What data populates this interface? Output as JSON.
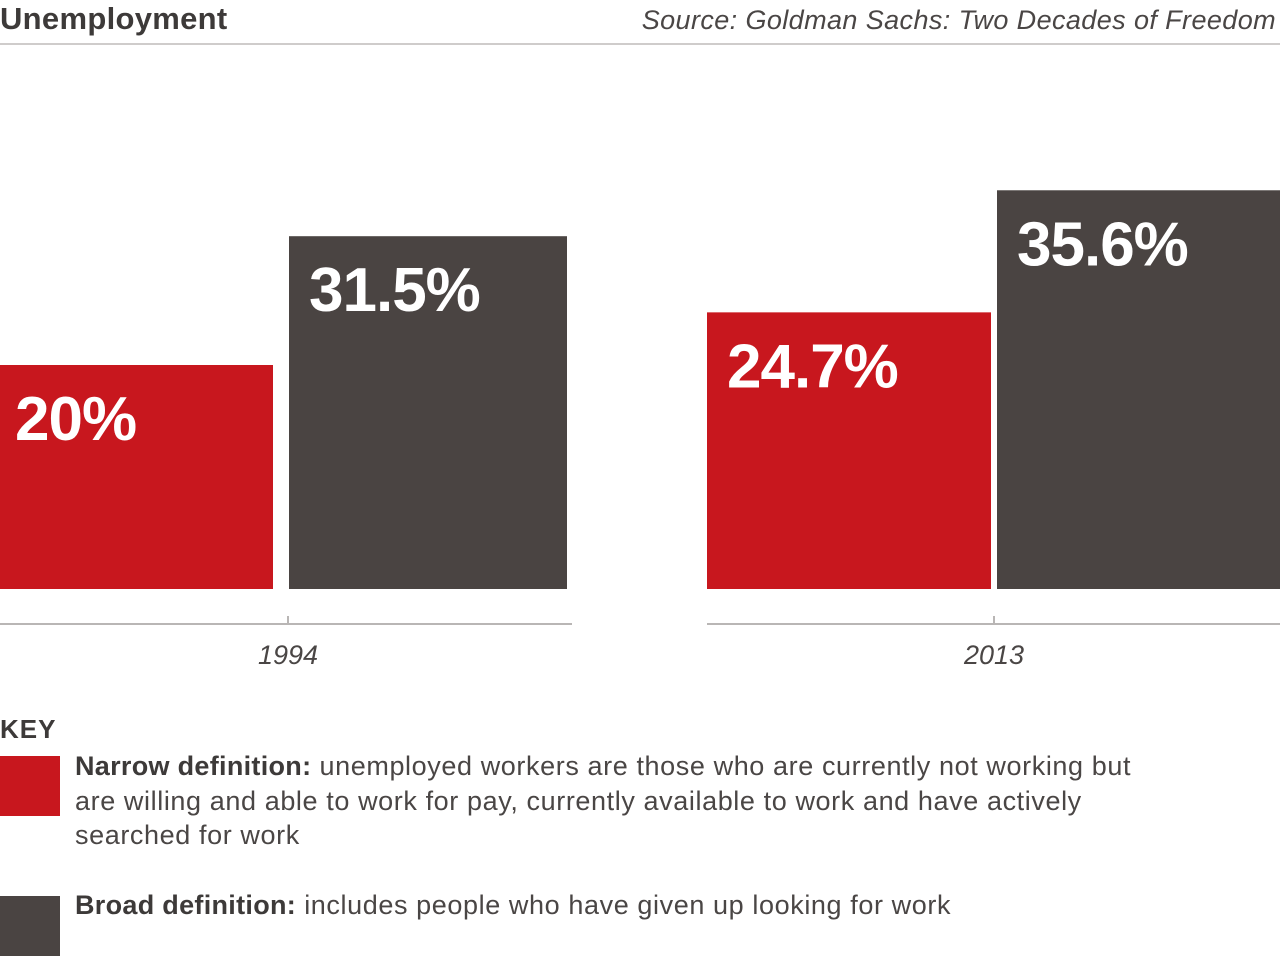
{
  "header": {
    "title": "Unemployment",
    "source": "Source: Goldman Sachs: Two Decades of Freedom"
  },
  "colors": {
    "narrow": "#c8171e",
    "broad": "#4a4442",
    "axis": "#b9b6b5",
    "label": "#ffffff"
  },
  "chart_data": {
    "type": "bar",
    "title": "Unemployment",
    "categories": [
      "1994",
      "2013"
    ],
    "series": [
      {
        "name": "Narrow definition",
        "values": [
          20,
          24.7
        ],
        "labels": [
          "20%",
          "24.7%"
        ]
      },
      {
        "name": "Broad definition",
        "values": [
          31.5,
          35.6
        ],
        "labels": [
          "31.5%",
          "35.6%"
        ]
      }
    ],
    "xlabel": "",
    "ylabel": "",
    "grid": false,
    "legend": "bottom"
  },
  "key": {
    "title": "KEY",
    "items": [
      {
        "term": "Narrow definition:",
        "description": "unemployed workers are those who are currently not working but are willing and able to work for pay, currently available to work and have actively searched for work"
      },
      {
        "term": "Broad definition:",
        "description": "includes people who have given up looking for work"
      }
    ]
  }
}
